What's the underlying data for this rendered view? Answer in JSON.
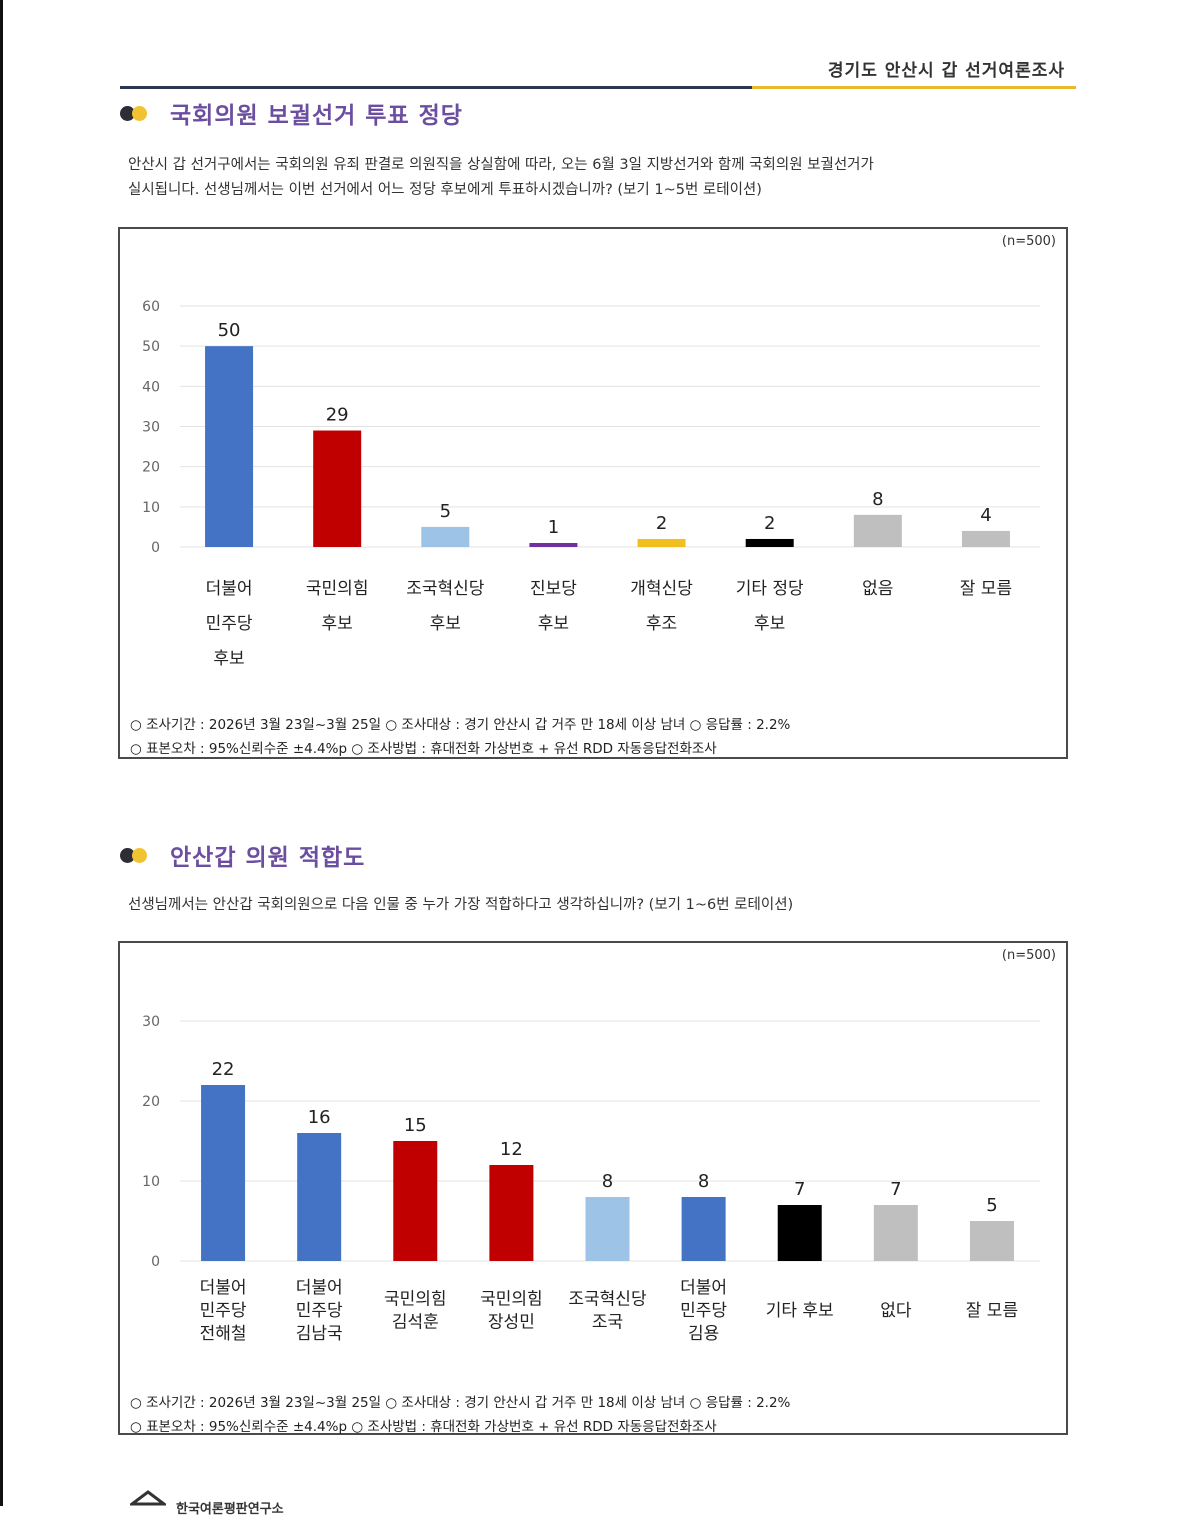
{
  "header": {
    "title": "경기도 안산시 갑 선거여론조사"
  },
  "section1": {
    "title": "국회의원 보궐선거 투표 정당",
    "question_line1": "안산시 갑 선거구에서는 국회의원 유죄 판결로 의원직을 상실함에 따라, 오는 6월 3일 지방선거와 함께 국회의원 보궐선거가",
    "question_line2": "실시됩니다. 선생님께서는 이번 선거에서 어느 정당 후보에게 투표하시겠습니까? (보기 1~5번 로테이션)",
    "n_label": "(n=500)",
    "footnote_line1": "○ 조사기간 : 2026년 3월 23일~3월 25일 ○ 조사대상 : 경기 안산시 갑 거주 만 18세 이상 남녀 ○ 응답률 : 2.2%",
    "footnote_line2": "○ 표본오차 : 95%신뢰수준 ±4.4%p ○ 조사방법 : 휴대전화 가상번호 + 유선 RDD 자동응답전화조사"
  },
  "section2": {
    "title": "안산갑 의원 적합도",
    "question_line1": "선생님께서는 안산갑 국회의원으로 다음 인물 중 누가 가장 적합하다고 생각하십니까? (보기 1~6번 로테이션)",
    "n_label": "(n=500)",
    "footnote_line1": "○ 조사기간 : 2026년 3월 23일~3월 25일 ○ 조사대상 : 경기 안산시 갑 거주 만 18세 이상 남녀 ○ 응답률 : 2.2%",
    "footnote_line2": "○ 표본오차 : 95%신뢰수준 ±4.4%p ○ 조사방법 : 휴대전화 가상번호 + 유선 RDD 자동응답전화조사"
  },
  "chart_data": [
    {
      "type": "bar",
      "title": "국회의원 보궐선거 투표 정당",
      "categories": [
        [
          "더불어",
          "민주당",
          "후보"
        ],
        [
          "국민의힘",
          "후보"
        ],
        [
          "조국혁신당",
          "후보"
        ],
        [
          "진보당",
          "후보"
        ],
        [
          "개혁신당",
          "후조"
        ],
        [
          "기타 정당",
          "후보"
        ],
        [
          "없음"
        ],
        [
          "잘 모름"
        ]
      ],
      "values": [
        50,
        29,
        5,
        1,
        2,
        2,
        8,
        4
      ],
      "colors": [
        "#4472c4",
        "#c00000",
        "#9dc3e6",
        "#7030a0",
        "#f2c01e",
        "#000000",
        "#bfbfbf",
        "#bfbfbf"
      ],
      "ylim": [
        0,
        60
      ],
      "yticks": [
        0,
        10,
        20,
        30,
        40,
        50,
        60
      ],
      "grid": true,
      "xlabel": "",
      "ylabel": ""
    },
    {
      "type": "bar",
      "title": "안산갑 의원 적합도",
      "categories": [
        [
          "더불어",
          "민주당",
          "전해철"
        ],
        [
          "더불어",
          "민주당",
          "김남국"
        ],
        [
          "국민의힘",
          "김석훈"
        ],
        [
          "국민의힘",
          "장성민"
        ],
        [
          "조국혁신당",
          "조국"
        ],
        [
          "더불어",
          "민주당",
          "김용"
        ],
        [
          "기타 후보"
        ],
        [
          "없다"
        ],
        [
          "잘 모름"
        ]
      ],
      "values": [
        22,
        16,
        15,
        12,
        8,
        8,
        7,
        7,
        5
      ],
      "colors": [
        "#4472c4",
        "#4472c4",
        "#c00000",
        "#c00000",
        "#9dc3e6",
        "#4472c4",
        "#000000",
        "#bfbfbf",
        "#bfbfbf"
      ],
      "ylim": [
        0,
        30
      ],
      "yticks": [
        0,
        10,
        20,
        30
      ],
      "grid": true,
      "xlabel": "",
      "ylabel": ""
    }
  ],
  "footer": {
    "org": "한국여론평판연구소"
  }
}
